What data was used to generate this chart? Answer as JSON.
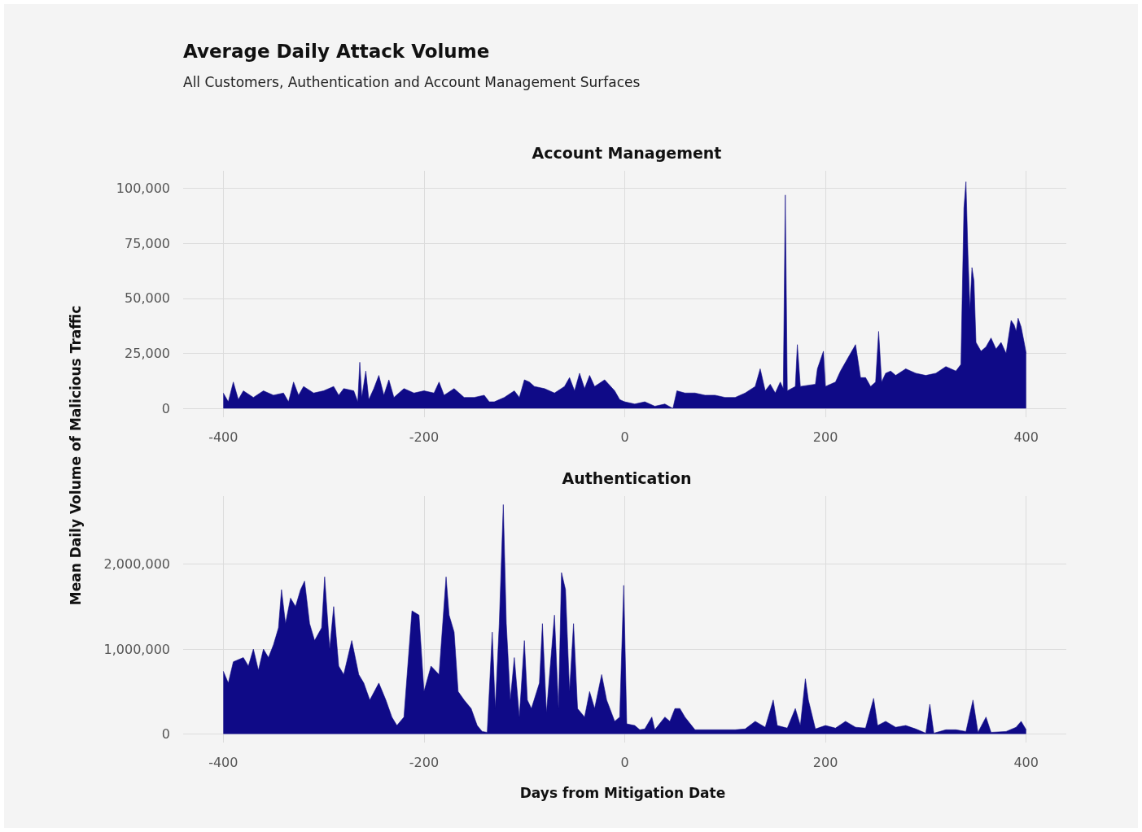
{
  "chart_data": [
    {
      "type": "area",
      "annotations": [
        "Average Daily Attack Volume",
        "All Customers, Authentication and Account Management Surfaces"
      ],
      "ylabel": "Mean Daily Volume of Malicious Traffic",
      "title": "Account Management",
      "series": [
        {
          "color": "#0f0a87",
          "x": [
            -400,
            -395,
            -390,
            -385,
            -380,
            -370,
            -360,
            -350,
            -340,
            -335,
            -330,
            -325,
            -320,
            -310,
            -300,
            -290,
            -285,
            -280,
            -270,
            -266,
            -264,
            -262,
            -258,
            -255,
            -250,
            -245,
            -240,
            -235,
            -230,
            -220,
            -210,
            -200,
            -190,
            -185,
            -180,
            -170,
            -160,
            -150,
            -140,
            -135,
            -130,
            -120,
            -110,
            -105,
            -100,
            -95,
            -90,
            -80,
            -70,
            -60,
            -55,
            -50,
            -45,
            -40,
            -35,
            -30,
            -20,
            -10,
            -5,
            0,
            10,
            20,
            30,
            40,
            48,
            52,
            60,
            70,
            80,
            90,
            100,
            110,
            120,
            130,
            135,
            140,
            145,
            150,
            155,
            158,
            160,
            162,
            170,
            172,
            175,
            190,
            192,
            198,
            200,
            210,
            215,
            225,
            230,
            235,
            240,
            245,
            250,
            253,
            256,
            260,
            265,
            270,
            280,
            290,
            300,
            310,
            320,
            330,
            335,
            338,
            340,
            342,
            344,
            346,
            348,
            350,
            355,
            360,
            365,
            370,
            375,
            380,
            385,
            388,
            390,
            392,
            395,
            398,
            400
          ],
          "values": [
            7000,
            3000,
            12000,
            4000,
            8000,
            5000,
            8000,
            6000,
            7000,
            3000,
            12000,
            6000,
            10000,
            7000,
            8000,
            10000,
            6000,
            9000,
            8000,
            3000,
            21000,
            5000,
            17000,
            4000,
            9000,
            15000,
            6000,
            13000,
            5000,
            9000,
            7000,
            8000,
            7000,
            12000,
            6000,
            9000,
            5000,
            5000,
            6000,
            3000,
            3000,
            5000,
            8000,
            5000,
            13000,
            12000,
            10000,
            9000,
            7000,
            10000,
            14000,
            8000,
            16000,
            9000,
            15000,
            10000,
            13000,
            8000,
            4000,
            3000,
            2000,
            3000,
            1000,
            2000,
            0,
            8000,
            7000,
            7000,
            6000,
            6000,
            5000,
            5000,
            7000,
            10000,
            18000,
            8000,
            11000,
            7000,
            12000,
            9000,
            97000,
            8000,
            10000,
            29000,
            10000,
            11000,
            18000,
            26000,
            10000,
            12000,
            17000,
            25000,
            29000,
            14000,
            14000,
            10000,
            12000,
            35000,
            12000,
            16000,
            17000,
            15000,
            18000,
            16000,
            15000,
            16000,
            19000,
            17000,
            20000,
            91000,
            103000,
            70000,
            45000,
            64000,
            58000,
            30000,
            26000,
            28000,
            32000,
            27000,
            30000,
            25000,
            40000,
            38000,
            35000,
            41000,
            37000,
            30000,
            25000
          ]
        }
      ],
      "xlim": [
        -440,
        440
      ],
      "xticks": [
        -400,
        -200,
        0,
        200,
        400
      ],
      "ylim": [
        -4000,
        108000
      ],
      "yticks": [
        0,
        {
          "value": 25000,
          "label": "25,000"
        },
        {
          "value": 50000,
          "label": "50,000"
        },
        {
          "value": 75000,
          "label": "75,000"
        },
        {
          "value": 100000,
          "label": "100,000"
        }
      ],
      "grid": true,
      "marker": "none"
    },
    {
      "type": "area",
      "xlabel": "Days from Mitigation Date",
      "title": "Authentication",
      "series": [
        {
          "color": "#0f0a87",
          "x": [
            -400,
            -395,
            -390,
            -380,
            -375,
            -370,
            -365,
            -360,
            -355,
            -350,
            -345,
            -342,
            -338,
            -333,
            -328,
            -323,
            -319,
            -314,
            -309,
            -302,
            -299,
            -294,
            -290,
            -285,
            -280,
            -272,
            -265,
            -260,
            -254,
            -245,
            -238,
            -232,
            -227,
            -220,
            -212,
            -205,
            -200,
            -193,
            -185,
            -178,
            -175,
            -170,
            -166,
            -160,
            -153,
            -147,
            -142,
            -137,
            -132,
            -129,
            -125,
            -121,
            -118,
            -114,
            -110,
            -105,
            -100,
            -97,
            -93,
            -85,
            -82,
            -78,
            -70,
            -66,
            -63,
            -59,
            -55,
            -51,
            -47,
            -40,
            -35,
            -30,
            -23,
            -18,
            -10,
            -5,
            -1,
            2,
            10,
            15,
            20,
            27,
            30,
            40,
            45,
            50,
            55,
            60,
            70,
            80,
            100,
            110,
            120,
            130,
            140,
            148,
            152,
            162,
            170,
            175,
            180,
            183,
            190,
            200,
            210,
            220,
            230,
            240,
            248,
            252,
            260,
            270,
            280,
            290,
            300,
            304,
            308,
            320,
            330,
            340,
            347,
            352,
            360,
            365,
            380,
            390,
            395,
            400
          ],
          "values": [
            740000,
            600000,
            850000,
            900000,
            800000,
            1000000,
            750000,
            1000000,
            900000,
            1050000,
            1250000,
            1700000,
            1300000,
            1600000,
            1500000,
            1700000,
            1800000,
            1300000,
            1100000,
            1250000,
            1850000,
            1000000,
            1500000,
            800000,
            700000,
            1100000,
            700000,
            600000,
            400000,
            600000,
            400000,
            200000,
            100000,
            200000,
            1450000,
            1400000,
            500000,
            800000,
            700000,
            1850000,
            1400000,
            1200000,
            500000,
            400000,
            300000,
            100000,
            30000,
            20000,
            1200000,
            300000,
            1300000,
            2700000,
            1300000,
            400000,
            900000,
            200000,
            1100000,
            400000,
            300000,
            600000,
            1300000,
            250000,
            1400000,
            300000,
            1900000,
            1700000,
            500000,
            1300000,
            300000,
            200000,
            500000,
            300000,
            700000,
            400000,
            150000,
            200000,
            1750000,
            120000,
            100000,
            50000,
            60000,
            200000,
            50000,
            200000,
            150000,
            300000,
            300000,
            200000,
            50000,
            50000,
            50000,
            50000,
            60000,
            150000,
            80000,
            400000,
            100000,
            70000,
            300000,
            100000,
            650000,
            400000,
            60000,
            100000,
            70000,
            150000,
            80000,
            70000,
            420000,
            100000,
            150000,
            80000,
            100000,
            60000,
            10000,
            350000,
            10000,
            50000,
            50000,
            30000,
            400000,
            20000,
            200000,
            20000,
            30000,
            80000,
            150000,
            50000
          ]
        }
      ],
      "xlim": [
        -440,
        440
      ],
      "xticks": [
        -400,
        -200,
        0,
        200,
        400
      ],
      "ylim": [
        -100000,
        2800000
      ],
      "yticks": [
        0,
        {
          "value": 1000000,
          "label": "1,000,000"
        },
        {
          "value": 2000000,
          "label": "2,000,000"
        }
      ],
      "grid": true,
      "marker": "none"
    }
  ]
}
